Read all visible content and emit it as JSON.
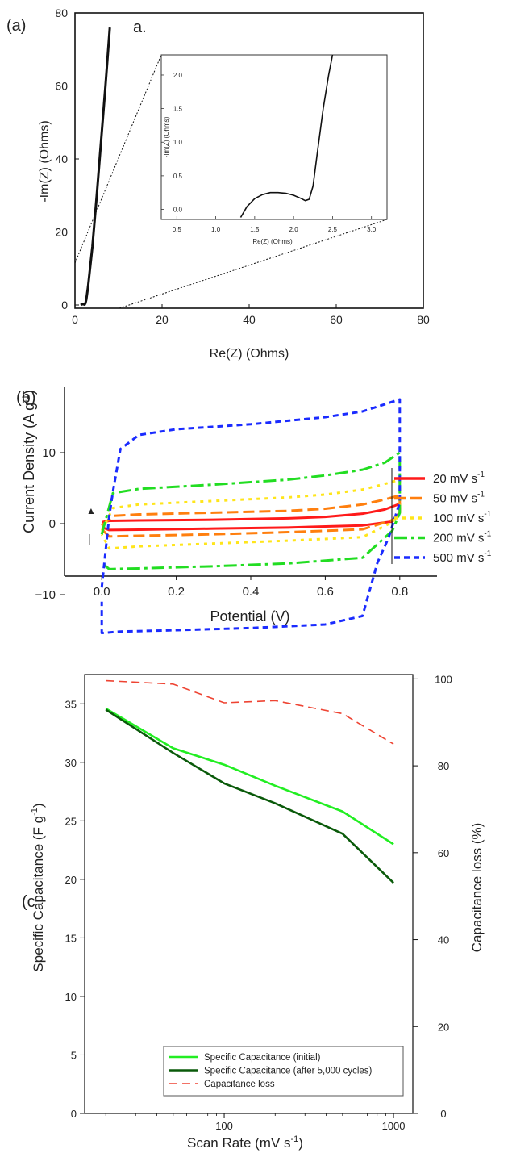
{
  "panels": {
    "a": {
      "label": "(a)",
      "inset_label": "a.",
      "xlabel": "Re(Z) (Ohms)",
      "ylabel": "-Im(Z) (Ohms)",
      "inset_xlabel": "Re(Z) (Ohms)",
      "inset_ylabel": "-Im(Z) (Ohms)"
    },
    "b": {
      "label": "(b)",
      "xlabel": "Potential (V)",
      "ylabel": "Current Density (A g",
      "ylabel_sup": "-1",
      "ylabel_close": ")",
      "legend": [
        {
          "label": "20 mV s",
          "sup": "-1"
        },
        {
          "label": "50 mV s",
          "sup": "-1"
        },
        {
          "label": "100 mV s",
          "sup": "-1"
        },
        {
          "label": "200 mV s",
          "sup": "-1"
        },
        {
          "label": "500 mV s",
          "sup": "-1"
        }
      ]
    },
    "c": {
      "label": "(c",
      "xlabel": "Scan Rate (mV s",
      "xlabel_sup": "-1",
      "xlabel_close": ")",
      "ylabel": "Specific Capacitance (F g",
      "ylabel_sup": "-1",
      "ylabel_close": ")",
      "y2label": "Capacitance loss (%)",
      "legend": [
        "Specific Capacitance (initial)",
        "Specific Capacitance (after 5,000 cycles)",
        "Capacitance loss"
      ]
    }
  },
  "chart_data": [
    {
      "type": "line",
      "xlabel": "Re(Z) (Ohms)",
      "ylabel": "-Im(Z) (Ohms)",
      "xlim": [
        0,
        80
      ],
      "ylim": [
        -1,
        80
      ],
      "xticks": [
        0,
        20,
        40,
        60,
        80
      ],
      "yticks": [
        0,
        20,
        40,
        60,
        80
      ],
      "colors": {
        "main": "#111111"
      },
      "series": [
        {
          "x": [
            1.3,
            1.6,
            1.8,
            2.0,
            2.2,
            2.4,
            2.6,
            3,
            4,
            5,
            6,
            7,
            8
          ],
          "y": [
            0,
            0.2,
            0.25,
            0.2,
            0.1,
            0.5,
            1.5,
            5,
            16,
            30,
            45,
            60,
            76
          ]
        }
      ],
      "inset": {
        "xlabel": "Re(Z) (Ohms)",
        "ylabel": "-Im(Z) (Ohms)",
        "xlim": [
          0.3,
          3.2
        ],
        "ylim": [
          -0.15,
          2.3
        ],
        "xticks": [
          0.5,
          1.0,
          1.5,
          2.0,
          2.5,
          3.0
        ],
        "yticks": [
          0.0,
          0.5,
          1.0,
          1.5,
          2.0
        ],
        "series": [
          {
            "x": [
              1.32,
              1.4,
              1.5,
              1.6,
              1.7,
              1.8,
              1.9,
              2.0,
              2.1,
              2.15,
              2.2,
              2.25,
              2.3,
              2.38,
              2.45,
              2.5
            ],
            "y": [
              -0.12,
              0.04,
              0.16,
              0.22,
              0.25,
              0.25,
              0.24,
              0.21,
              0.16,
              0.13,
              0.15,
              0.35,
              0.8,
              1.5,
              2.0,
              2.3
            ]
          }
        ]
      }
    },
    {
      "type": "line",
      "xlabel": "Potential (V)",
      "ylabel": "Current Density (A g-1)",
      "xlim": [
        -0.1,
        0.9
      ],
      "ylim": [
        -18,
        18
      ],
      "xticks": [
        0.0,
        0.2,
        0.4,
        0.6,
        0.8
      ],
      "yticks": [
        -10,
        0,
        10
      ],
      "series": [
        {
          "name": "20 mV s-1",
          "color": "#ff1a1a",
          "dash": "none",
          "upper": [
            [
              0,
              0.2
            ],
            [
              0.02,
              0.4
            ],
            [
              0.1,
              0.45
            ],
            [
              0.3,
              0.55
            ],
            [
              0.5,
              0.75
            ],
            [
              0.6,
              0.95
            ],
            [
              0.7,
              1.4
            ],
            [
              0.76,
              2.0
            ],
            [
              0.8,
              2.8
            ]
          ],
          "lower": [
            [
              0.8,
              1.6
            ],
            [
              0.78,
              0.3
            ],
            [
              0.7,
              -0.25
            ],
            [
              0.5,
              -0.55
            ],
            [
              0.3,
              -0.7
            ],
            [
              0.1,
              -0.85
            ],
            [
              0.02,
              -0.9
            ],
            [
              0,
              -0.5
            ]
          ]
        },
        {
          "name": "50 mV s-1",
          "color": "#ff7f0e",
          "dash": "14,6",
          "upper": [
            [
              0,
              -0.3
            ],
            [
              0.03,
              1.1
            ],
            [
              0.1,
              1.3
            ],
            [
              0.3,
              1.55
            ],
            [
              0.5,
              1.8
            ],
            [
              0.6,
              2.1
            ],
            [
              0.7,
              2.7
            ],
            [
              0.76,
              3.4
            ],
            [
              0.8,
              4.0
            ]
          ],
          "lower": [
            [
              0.8,
              1.5
            ],
            [
              0.78,
              0.5
            ],
            [
              0.7,
              -0.8
            ],
            [
              0.5,
              -1.2
            ],
            [
              0.3,
              -1.5
            ],
            [
              0.1,
              -1.7
            ],
            [
              0.02,
              -1.8
            ],
            [
              0,
              -0.8
            ]
          ]
        },
        {
          "name": "100 mV s-1",
          "color": "#ffe51a",
          "dash": "4,6",
          "upper": [
            [
              0,
              -1.0
            ],
            [
              0.03,
              2.2
            ],
            [
              0.1,
              2.7
            ],
            [
              0.3,
              3.2
            ],
            [
              0.5,
              3.7
            ],
            [
              0.6,
              4.1
            ],
            [
              0.7,
              4.8
            ],
            [
              0.76,
              5.6
            ],
            [
              0.8,
              6.2
            ]
          ],
          "lower": [
            [
              0.8,
              1.5
            ],
            [
              0.78,
              0.2
            ],
            [
              0.7,
              -1.9
            ],
            [
              0.5,
              -2.4
            ],
            [
              0.3,
              -2.8
            ],
            [
              0.1,
              -3.2
            ],
            [
              0.02,
              -3.5
            ],
            [
              0,
              -1.5
            ]
          ]
        },
        {
          "name": "200 mV s-1",
          "color": "#22dd22",
          "dash": "16,5,4,5",
          "upper": [
            [
              0,
              -1.5
            ],
            [
              0.03,
              4.3
            ],
            [
              0.1,
              4.9
            ],
            [
              0.3,
              5.5
            ],
            [
              0.5,
              6.2
            ],
            [
              0.6,
              6.8
            ],
            [
              0.7,
              7.6
            ],
            [
              0.76,
              8.6
            ],
            [
              0.8,
              10.0
            ]
          ],
          "lower": [
            [
              0.8,
              1.5
            ],
            [
              0.78,
              -1.0
            ],
            [
              0.7,
              -4.8
            ],
            [
              0.5,
              -5.6
            ],
            [
              0.3,
              -6.0
            ],
            [
              0.1,
              -6.3
            ],
            [
              0.02,
              -6.4
            ],
            [
              0,
              -5.5
            ]
          ]
        },
        {
          "name": "500 mV s-1",
          "color": "#1a2bff",
          "dash": "7,5",
          "upper": [
            [
              0,
              -9
            ],
            [
              0.02,
              1
            ],
            [
              0.03,
              4.5
            ],
            [
              0.05,
              10.5
            ],
            [
              0.1,
              12.5
            ],
            [
              0.2,
              13.3
            ],
            [
              0.4,
              14.0
            ],
            [
              0.6,
              15.0
            ],
            [
              0.7,
              15.8
            ],
            [
              0.8,
              17.5
            ]
          ],
          "lower": [
            [
              0.8,
              3
            ],
            [
              0.77,
              -2
            ],
            [
              0.74,
              -5.5
            ],
            [
              0.7,
              -13.0
            ],
            [
              0.6,
              -14.2
            ],
            [
              0.4,
              -14.7
            ],
            [
              0.2,
              -15.0
            ],
            [
              0.05,
              -15.2
            ],
            [
              0,
              -15.4
            ],
            [
              0,
              -11
            ]
          ]
        }
      ]
    },
    {
      "type": "line",
      "xlabel": "Scan Rate (mV s-1)",
      "ylabel": "Specific Capacitance (F g-1)",
      "y2label": "Capacitance loss (%)",
      "xscale": "log",
      "xlim": [
        15,
        1300
      ],
      "ylim": [
        0,
        37.5
      ],
      "y2lim": [
        0,
        101
      ],
      "xticks": [
        100,
        1000
      ],
      "yticks": [
        0,
        5,
        10,
        15,
        20,
        25,
        30,
        35
      ],
      "y2ticks": [
        0,
        20,
        40,
        60,
        80,
        100
      ],
      "series": [
        {
          "name": "Specific Capacitance (initial)",
          "color": "#22ee22",
          "axis": "left",
          "x": [
            20,
            50,
            100,
            200,
            500,
            1000
          ],
          "y": [
            34.6,
            31.2,
            29.8,
            28.0,
            25.8,
            23.0
          ]
        },
        {
          "name": "Specific Capacitance (after 5,000 cycles)",
          "color": "#0a5a0a",
          "axis": "left",
          "x": [
            20,
            50,
            100,
            200,
            500,
            1000
          ],
          "y": [
            34.5,
            30.8,
            28.2,
            26.5,
            23.9,
            19.7
          ]
        },
        {
          "name": "Capacitance loss",
          "color": "#ee4433",
          "dash": "10,6",
          "axis": "right",
          "x": [
            20,
            50,
            100,
            200,
            500,
            1000
          ],
          "y": [
            99.6,
            98.8,
            94.5,
            95.0,
            92.0,
            85.0
          ]
        }
      ]
    }
  ]
}
